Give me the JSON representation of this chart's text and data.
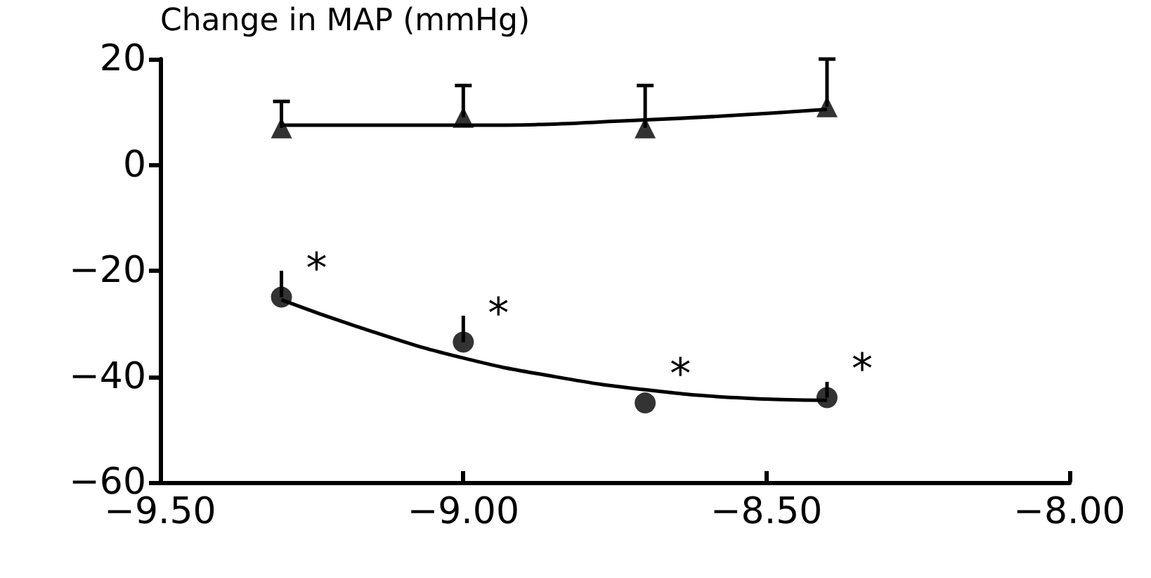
{
  "chart_data": {
    "type": "scatter",
    "ylabel": "Change in MAP (mmHg)",
    "xlim": [
      -9.5,
      -8.0
    ],
    "xticks": [
      {
        "value": -9.5,
        "label": "−9.50"
      },
      {
        "value": -9.0,
        "label": "−9.00"
      },
      {
        "value": -8.5,
        "label": "−8.50"
      },
      {
        "value": -8.0,
        "label": "−8.00"
      }
    ],
    "ylim": [
      -60,
      20
    ],
    "yticks": [
      {
        "value": -60,
        "label": "−60"
      },
      {
        "value": -40,
        "label": "−40"
      },
      {
        "value": -20,
        "label": "−20"
      },
      20,
      {
        "value": 0,
        "label": "0"
      }
    ],
    "grid": false,
    "series": [
      {
        "marker": "triangle",
        "color": "#000000",
        "x": [
          -9.3,
          -9.0,
          -8.7,
          -8.4
        ],
        "values": [
          7,
          9,
          7,
          11
        ],
        "errors": [
          [
            7,
            12
          ],
          [
            9,
            15
          ],
          [
            7,
            15
          ],
          [
            11,
            20
          ]
        ]
      },
      {
        "marker": "circle",
        "color": "#000000",
        "x": [
          -9.3,
          -9.0,
          -8.7,
          -8.4
        ],
        "values": [
          -25,
          -33.5,
          -45,
          -44
        ],
        "errors": [
          [
            -25,
            -20
          ],
          [
            -33.5,
            -28.5
          ],
          null,
          [
            -44,
            -41
          ]
        ]
      },
      {
        "type": "line",
        "marker": "none",
        "color": "#000000",
        "x": [
          -9.3,
          -9.0,
          -8.7,
          -8.4
        ],
        "values": [
          7.5,
          7.5,
          8.5,
          10.5
        ]
      },
      {
        "type": "line",
        "marker": "none",
        "color": "#000000",
        "x": [
          -9.3,
          -9.15,
          -9.0,
          -8.85,
          -8.7,
          -8.55,
          -8.4
        ],
        "values": [
          -25.5,
          -31.5,
          -36.5,
          -40,
          -42.5,
          -44,
          -44.5
        ]
      }
    ],
    "annotations": [
      {
        "text": "*",
        "x": -9.3,
        "y": -25
      },
      {
        "text": "*",
        "x": -9.0,
        "y": -33.5
      },
      {
        "text": "*",
        "x": -8.7,
        "y": -45
      },
      {
        "text": "*",
        "x": -8.4,
        "y": -44
      }
    ]
  }
}
